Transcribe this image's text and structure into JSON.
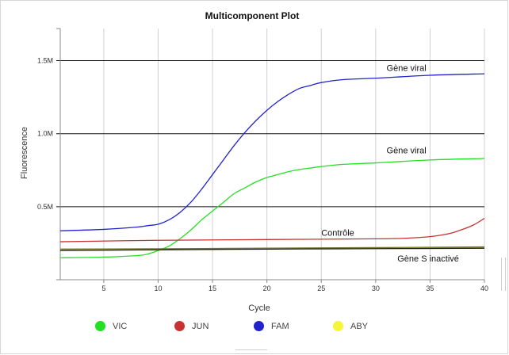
{
  "chart_data": {
    "type": "line",
    "title": "Multicomponent Plot",
    "xlabel": "Cycle",
    "ylabel": "Fluorescence",
    "xlim": [
      1,
      40
    ],
    "ylim": [
      0,
      1.72
    ],
    "x_ticks": [
      5,
      10,
      15,
      20,
      25,
      30,
      35,
      40
    ],
    "y_ticks": [
      {
        "value": 0.5,
        "label": "0.5M"
      },
      {
        "value": 1.0,
        "label": "1.0M"
      },
      {
        "value": 1.5,
        "label": "1.5M"
      }
    ],
    "grid": "vertical",
    "legend_position": "bottom",
    "series": [
      {
        "name": "VIC",
        "color": "#22e022",
        "x": [
          1,
          5,
          8,
          9,
          10,
          11,
          12,
          13,
          14,
          15,
          16,
          17,
          18,
          19,
          20,
          21,
          22,
          23,
          24,
          25,
          27,
          30,
          35,
          40
        ],
        "values": [
          0.15,
          0.155,
          0.165,
          0.175,
          0.2,
          0.23,
          0.28,
          0.34,
          0.41,
          0.47,
          0.53,
          0.59,
          0.63,
          0.67,
          0.7,
          0.72,
          0.74,
          0.755,
          0.765,
          0.775,
          0.79,
          0.8,
          0.82,
          0.83
        ]
      },
      {
        "name": "JUN",
        "color": "#c83232",
        "x": [
          1,
          10,
          20,
          30,
          33,
          35,
          36,
          37,
          38,
          39,
          40
        ],
        "values": [
          0.26,
          0.27,
          0.275,
          0.28,
          0.285,
          0.295,
          0.305,
          0.32,
          0.345,
          0.375,
          0.42
        ]
      },
      {
        "name": "FAM",
        "color": "#2222cc",
        "x": [
          1,
          5,
          8,
          9,
          10,
          11,
          12,
          13,
          14,
          15,
          16,
          17,
          18,
          19,
          20,
          21,
          22,
          23,
          24,
          25,
          27,
          30,
          35,
          40
        ],
        "values": [
          0.335,
          0.345,
          0.36,
          0.37,
          0.38,
          0.41,
          0.46,
          0.53,
          0.62,
          0.72,
          0.82,
          0.92,
          1.01,
          1.09,
          1.16,
          1.22,
          1.27,
          1.31,
          1.33,
          1.35,
          1.37,
          1.38,
          1.4,
          1.41
        ]
      },
      {
        "name": "ABY",
        "color": "#f5f53a",
        "x": [
          1,
          10,
          20,
          30,
          40
        ],
        "values": [
          0.205,
          0.208,
          0.213,
          0.218,
          0.222
        ]
      },
      {
        "name": "",
        "color": "#111111",
        "x": [
          1,
          10,
          20,
          30,
          40
        ],
        "values": [
          0.2,
          0.205,
          0.21,
          0.213,
          0.216
        ]
      },
      {
        "name": "",
        "color": "#777733",
        "x": [
          1,
          10,
          20,
          30,
          40
        ],
        "values": [
          0.21,
          0.212,
          0.216,
          0.22,
          0.225
        ]
      }
    ],
    "annotations": [
      {
        "text": "Gène viral",
        "x": 31,
        "y": 1.43
      },
      {
        "text": "Gène viral",
        "x": 31,
        "y": 0.865
      },
      {
        "text": "Contrôle",
        "x": 25,
        "y": 0.3
      },
      {
        "text": "Gène S  inactivé",
        "x": 32,
        "y": 0.125
      }
    ]
  },
  "legend": [
    {
      "name": "VIC",
      "color": "#22e022"
    },
    {
      "name": "JUN",
      "color": "#c83232"
    },
    {
      "name": "FAM",
      "color": "#2222cc"
    },
    {
      "name": "ABY",
      "color": "#f5f53a"
    }
  ]
}
